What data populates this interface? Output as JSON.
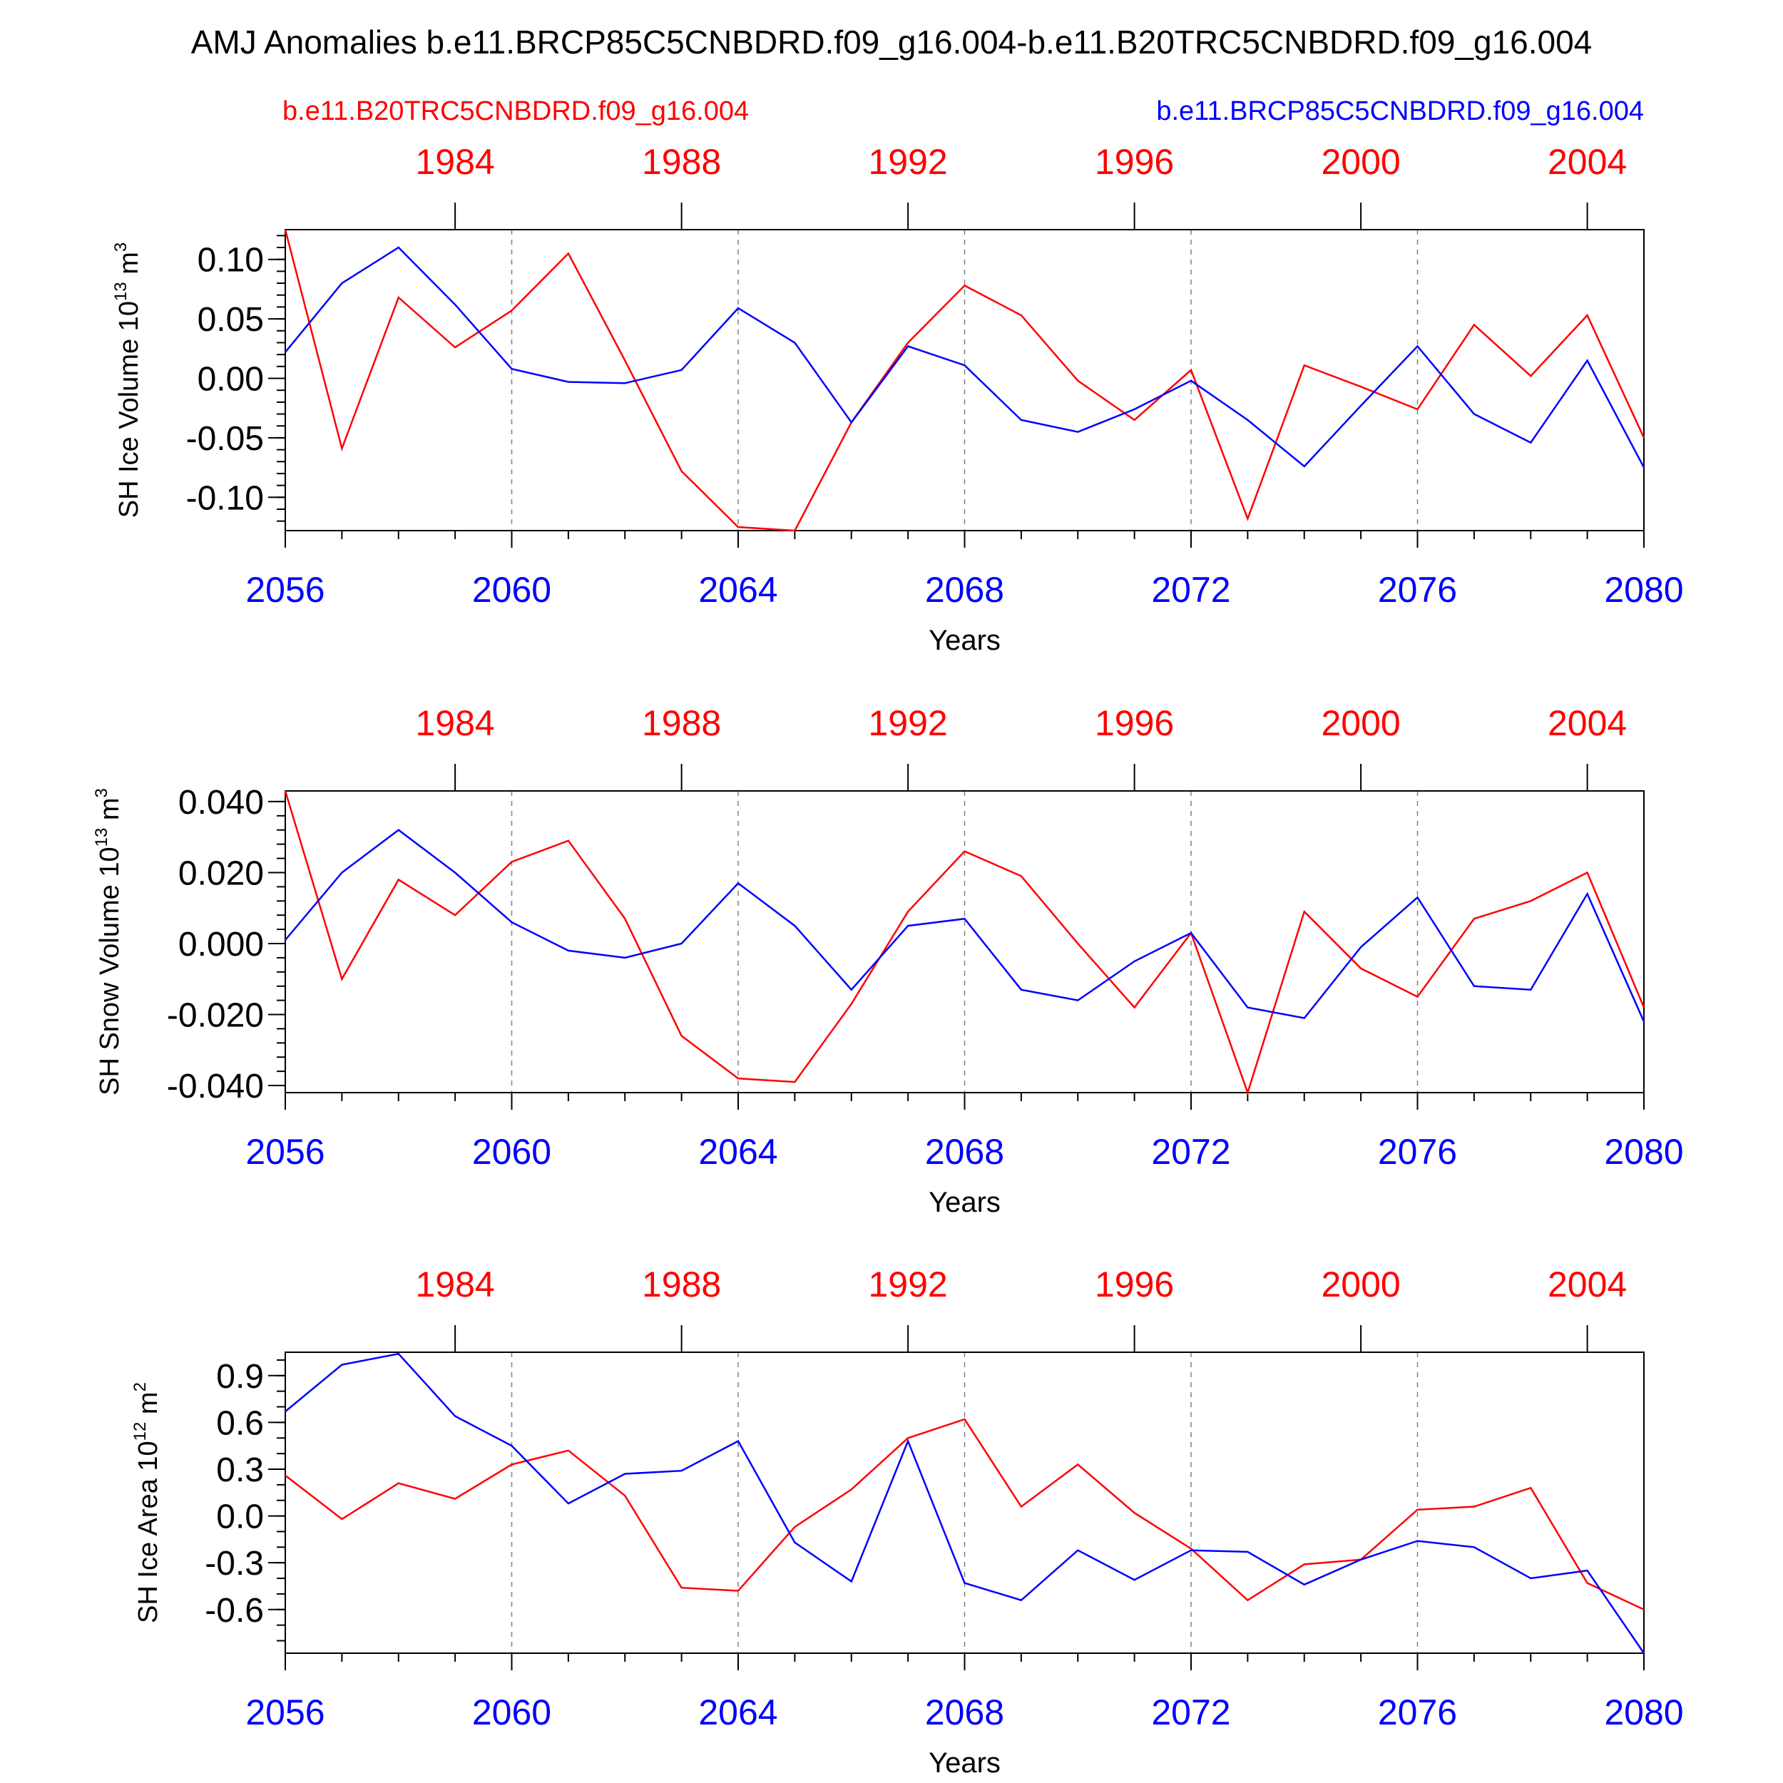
{
  "title": "AMJ Anomalies b.e11.BRCP85C5CNBDRD.f09_g16.004-b.e11.B20TRC5CNBDRD.f09_g16.004",
  "legend": {
    "red_label": "b.e11.B20TRC5CNBDRD.f09_g16.004",
    "blue_label": "b.e11.BRCP85C5CNBDRD.f09_g16.004"
  },
  "colors": {
    "red": "#ff0000",
    "blue": "#0000ff",
    "grid": "#808080"
  },
  "chart_data": [
    {
      "type": "line",
      "ylabel": "SH Ice Volume 10",
      "ylabel_sup": "13",
      "ylabel_unit": "m",
      "ylabel_unit_sup": "3",
      "xlabel": "Years",
      "xlim": [
        2056,
        2080
      ],
      "top_xlim": [
        1981,
        2005
      ],
      "ylim": [
        -0.128,
        0.125
      ],
      "yticks": [
        0.1,
        0.05,
        0.0,
        -0.05,
        -0.1
      ],
      "ytick_labels": [
        "0.10",
        "0.05",
        "0.00",
        "-0.05",
        "-0.10"
      ],
      "yminor_step": 0.01,
      "x_bottom_ticks": [
        2056,
        2060,
        2064,
        2068,
        2072,
        2076,
        2080
      ],
      "x_bottom_labels": [
        "2056",
        "2060",
        "2064",
        "2068",
        "2072",
        "2076",
        "2080"
      ],
      "x_top_ticks": [
        1984,
        1988,
        1992,
        1996,
        2000,
        2004
      ],
      "x_top_labels": [
        "1984",
        "1988",
        "1992",
        "1996",
        "2000",
        "2004"
      ],
      "x": [
        2056,
        2057,
        2058,
        2059,
        2060,
        2061,
        2062,
        2063,
        2064,
        2065,
        2066,
        2067,
        2068,
        2069,
        2070,
        2071,
        2072,
        2073,
        2074,
        2075,
        2076,
        2077,
        2078,
        2079,
        2080
      ],
      "series": [
        {
          "name": "b.e11.B20TRC5CNBDRD.f09_g16.004",
          "color": "red",
          "values": [
            0.125,
            -0.059,
            0.068,
            0.026,
            0.057,
            0.105,
            0.015,
            -0.078,
            -0.125,
            -0.128,
            -0.037,
            0.03,
            0.078,
            0.053,
            -0.002,
            -0.035,
            0.007,
            -0.118,
            0.011,
            -0.007,
            -0.026,
            0.045,
            0.002,
            0.053,
            -0.05
          ]
        },
        {
          "name": "b.e11.BRCP85C5CNBDRD.f09_g16.004",
          "color": "blue",
          "values": [
            0.022,
            0.08,
            0.11,
            0.062,
            0.008,
            -0.003,
            -0.004,
            0.007,
            0.059,
            0.03,
            -0.037,
            0.027,
            0.011,
            -0.035,
            -0.045,
            -0.026,
            -0.002,
            -0.035,
            -0.074,
            -0.023,
            0.027,
            -0.03,
            -0.054,
            0.015,
            -0.075
          ]
        }
      ]
    },
    {
      "type": "line",
      "ylabel": "SH Snow Volume 10",
      "ylabel_sup": "13",
      "ylabel_unit": "m",
      "ylabel_unit_sup": "3",
      "xlabel": "Years",
      "xlim": [
        2056,
        2080
      ],
      "top_xlim": [
        1981,
        2005
      ],
      "ylim": [
        -0.042,
        0.043
      ],
      "yticks": [
        0.04,
        0.02,
        0.0,
        -0.02,
        -0.04
      ],
      "ytick_labels": [
        "0.040",
        "0.020",
        "0.000",
        "-0.020",
        "-0.040"
      ],
      "yminor_step": 0.004,
      "x_bottom_ticks": [
        2056,
        2060,
        2064,
        2068,
        2072,
        2076,
        2080
      ],
      "x_bottom_labels": [
        "2056",
        "2060",
        "2064",
        "2068",
        "2072",
        "2076",
        "2080"
      ],
      "x_top_ticks": [
        1984,
        1988,
        1992,
        1996,
        2000,
        2004
      ],
      "x_top_labels": [
        "1984",
        "1988",
        "1992",
        "1996",
        "2000",
        "2004"
      ],
      "x": [
        2056,
        2057,
        2058,
        2059,
        2060,
        2061,
        2062,
        2063,
        2064,
        2065,
        2066,
        2067,
        2068,
        2069,
        2070,
        2071,
        2072,
        2073,
        2074,
        2075,
        2076,
        2077,
        2078,
        2079,
        2080
      ],
      "series": [
        {
          "name": "b.e11.B20TRC5CNBDRD.f09_g16.004",
          "color": "red",
          "values": [
            0.043,
            -0.01,
            0.018,
            0.008,
            0.023,
            0.029,
            0.007,
            -0.026,
            -0.038,
            -0.039,
            -0.017,
            0.009,
            0.026,
            0.019,
            0.0,
            -0.018,
            0.003,
            -0.042,
            0.009,
            -0.007,
            -0.015,
            0.007,
            0.012,
            0.02,
            -0.018
          ]
        },
        {
          "name": "b.e11.BRCP85C5CNBDRD.f09_g16.004",
          "color": "blue",
          "values": [
            0.001,
            0.02,
            0.032,
            0.02,
            0.006,
            -0.002,
            -0.004,
            0.0,
            0.017,
            0.005,
            -0.013,
            0.005,
            0.007,
            -0.013,
            -0.016,
            -0.005,
            0.003,
            -0.018,
            -0.021,
            -0.001,
            0.013,
            -0.012,
            -0.013,
            0.014,
            -0.022
          ]
        }
      ]
    },
    {
      "type": "line",
      "ylabel": "SH Ice Area 10",
      "ylabel_sup": "12",
      "ylabel_unit": "m",
      "ylabel_unit_sup": "2",
      "xlabel": "Years",
      "xlim": [
        2056,
        2080
      ],
      "top_xlim": [
        1981,
        2005
      ],
      "ylim": [
        -0.88,
        1.05
      ],
      "yticks": [
        0.9,
        0.6,
        0.3,
        0.0,
        -0.3,
        -0.6
      ],
      "ytick_labels": [
        "0.9",
        "0.6",
        "0.3",
        "0.0",
        "-0.3",
        "-0.6"
      ],
      "yminor_step": 0.1,
      "x_bottom_ticks": [
        2056,
        2060,
        2064,
        2068,
        2072,
        2076,
        2080
      ],
      "x_bottom_labels": [
        "2056",
        "2060",
        "2064",
        "2068",
        "2072",
        "2076",
        "2080"
      ],
      "x_top_ticks": [
        1984,
        1988,
        1992,
        1996,
        2000,
        2004
      ],
      "x_top_labels": [
        "1984",
        "1988",
        "1992",
        "1996",
        "2000",
        "2004"
      ],
      "x": [
        2056,
        2057,
        2058,
        2059,
        2060,
        2061,
        2062,
        2063,
        2064,
        2065,
        2066,
        2067,
        2068,
        2069,
        2070,
        2071,
        2072,
        2073,
        2074,
        2075,
        2076,
        2077,
        2078,
        2079,
        2080
      ],
      "series": [
        {
          "name": "b.e11.B20TRC5CNBDRD.f09_g16.004",
          "color": "red",
          "values": [
            0.26,
            -0.02,
            0.21,
            0.11,
            0.33,
            0.42,
            0.13,
            -0.46,
            -0.48,
            -0.07,
            0.17,
            0.5,
            0.62,
            0.06,
            0.33,
            0.02,
            -0.21,
            -0.54,
            -0.31,
            -0.28,
            0.04,
            0.06,
            0.18,
            -0.43,
            -0.6
          ]
        },
        {
          "name": "b.e11.BRCP85C5CNBDRD.f09_g16.004",
          "color": "blue",
          "values": [
            0.67,
            0.97,
            1.04,
            0.64,
            0.45,
            0.08,
            0.27,
            0.29,
            0.48,
            -0.17,
            -0.42,
            0.48,
            -0.43,
            -0.54,
            -0.22,
            -0.41,
            -0.22,
            -0.23,
            -0.44,
            -0.28,
            -0.16,
            -0.2,
            -0.4,
            -0.35,
            -0.88
          ]
        }
      ]
    }
  ]
}
